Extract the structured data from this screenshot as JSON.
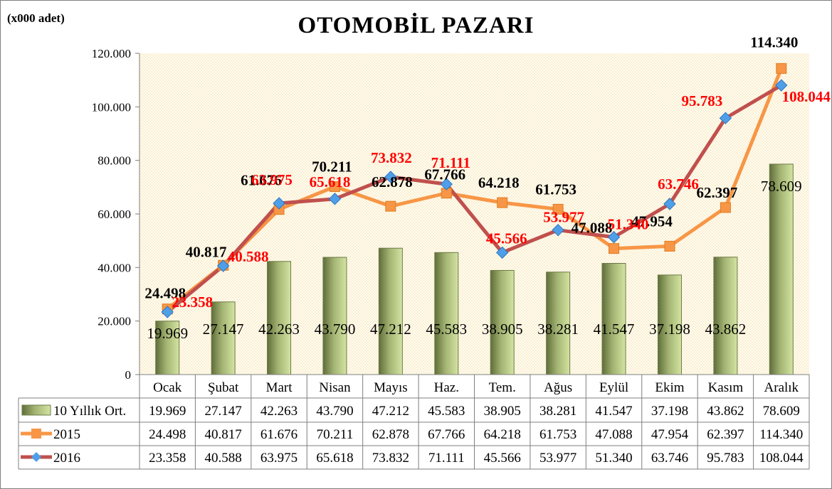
{
  "chart_data": {
    "type": "bar",
    "title": "OTOMOBİL PAZARI",
    "unit_label": "(x000 adet)",
    "categories": [
      "Ocak",
      "Şubat",
      "Mart",
      "Nisan",
      "Mayıs",
      "Haz.",
      "Tem.",
      "Ağus",
      "Eylül",
      "Ekim",
      "Kasım",
      "Aralık"
    ],
    "ylim": [
      0,
      120000
    ],
    "y_ticks": [
      "0",
      "20.000",
      "40.000",
      "60.000",
      "80.000",
      "100.000",
      "120.000"
    ],
    "grid": false,
    "legend": "data-table-below",
    "series": [
      {
        "name": "10 Yıllık Ort.",
        "type": "bar",
        "color": "#8a9a5b",
        "values": [
          19969,
          27147,
          42263,
          43790,
          47212,
          45583,
          38905,
          38281,
          41547,
          37198,
          43862,
          78609
        ],
        "labels": [
          "19.969",
          "27.147",
          "42.263",
          "43.790",
          "47.212",
          "45.583",
          "38.905",
          "38.281",
          "41.547",
          "37.198",
          "43.862",
          "78.609"
        ]
      },
      {
        "name": "2015",
        "type": "line",
        "color": "#f79646",
        "label_color": "#000000",
        "values": [
          24498,
          40817,
          61676,
          70211,
          62878,
          67766,
          64218,
          61753,
          47088,
          47954,
          62397,
          114340
        ],
        "labels": [
          "24.498",
          "40.817",
          "61.676",
          "70.211",
          "62.878",
          "67.766",
          "64.218",
          "61.753",
          "47.088",
          "47.954",
          "62.397",
          "114.340"
        ]
      },
      {
        "name": "2016",
        "type": "line",
        "color": "#c0504d",
        "marker_color": "#4f9fe8",
        "label_color": "#ff0000",
        "values": [
          23358,
          40588,
          63975,
          65618,
          73832,
          71111,
          45566,
          53977,
          51340,
          63746,
          95783,
          108044
        ],
        "labels": [
          "23.358",
          "40.588",
          "63.975",
          "65.618",
          "73.832",
          "71.111",
          "45.566",
          "53.977",
          "51.340",
          "63.746",
          "95.783",
          "108.044"
        ]
      }
    ]
  }
}
